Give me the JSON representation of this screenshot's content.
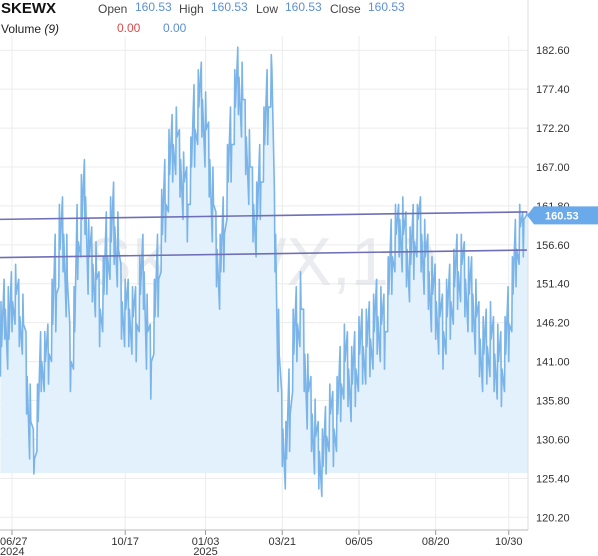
{
  "header": {
    "symbol": "SKEWX",
    "open_label": "Open",
    "open_value": "160.53",
    "high_label": "High",
    "high_value": "160.53",
    "low_label": "Low",
    "low_value": "160.53",
    "close_label": "Close",
    "close_value": "160.53",
    "volume_label": "Volume",
    "volume_period": "(9)",
    "volume_value_1": "0.00",
    "volume_value_2": "0.00"
  },
  "watermark": "SKEWX,1D",
  "last_price_label": "160.53",
  "colors": {
    "line": "#7ab4e8",
    "area": "#e3f1fd",
    "trendline": "#6f6fb8",
    "price_tag": "#6aa9ea",
    "grid": "#ececec"
  },
  "chart_data": {
    "type": "area",
    "title": "",
    "xlabel": "",
    "ylabel": "",
    "ylim": [
      118.5,
      184.5
    ],
    "y_ticks": [
      182.6,
      177.4,
      172.2,
      167.0,
      161.8,
      156.6,
      151.4,
      146.2,
      141.0,
      135.8,
      130.6,
      125.4,
      120.2
    ],
    "y_tick_labels": [
      "182.60",
      "177.40",
      "172.20",
      "167.00",
      "161.80",
      "156.60",
      "151.40",
      "146.20",
      "141.00",
      "135.80",
      "130.60",
      "125.40",
      "120.20"
    ],
    "x_tick_labels": [
      {
        "label": "06/27",
        "sublabel": "2024",
        "index": 3
      },
      {
        "label": "10/17",
        "sublabel": "",
        "index": 34
      },
      {
        "label": "01/03",
        "sublabel": "2025",
        "index": 56
      },
      {
        "label": "03/21",
        "sublabel": "",
        "index": 77
      },
      {
        "label": "06/05",
        "sublabel": "",
        "index": 98
      },
      {
        "label": "08/20",
        "sublabel": "",
        "index": 119
      },
      {
        "label": "10/30",
        "sublabel": "",
        "index": 139
      }
    ],
    "series": [
      {
        "values": [
          143,
          148,
          144,
          149,
          150,
          147,
          146,
          139,
          133,
          128,
          133,
          141,
          141,
          142,
          146,
          150,
          156,
          158,
          152,
          141,
          145,
          157,
          160,
          163,
          155,
          154,
          152,
          148,
          150,
          155,
          157,
          159,
          156,
          149,
          148,
          148,
          147,
          146,
          150,
          153,
          145,
          141,
          147,
          152,
          158,
          162,
          166,
          170,
          171,
          168,
          165,
          162,
          167,
          172,
          175,
          176,
          172,
          168,
          162,
          156,
          153,
          158,
          165,
          170,
          175,
          179,
          176,
          171,
          167,
          162,
          160,
          165,
          170,
          175,
          180,
          158,
          142,
          132,
          128,
          134,
          142,
          146,
          148,
          142,
          137,
          134,
          131,
          129,
          127,
          131,
          134,
          132,
          134,
          138,
          141,
          140,
          138,
          140,
          142,
          143,
          143,
          144,
          145,
          147,
          146,
          145,
          150,
          155,
          158,
          160,
          158,
          156,
          154,
          157,
          160,
          158,
          155,
          153,
          150,
          149,
          147,
          145,
          147,
          149,
          151,
          153,
          154,
          152,
          150,
          150,
          147,
          144,
          142,
          143,
          144,
          142,
          141,
          140,
          142,
          146,
          150,
          156,
          159,
          160,
          160.53
        ],
        "highs": [
          149,
          152,
          151,
          153,
          154,
          152,
          150,
          145,
          138,
          132,
          138,
          145,
          145,
          146,
          152,
          158,
          162,
          163,
          158,
          146,
          151,
          162,
          166,
          168,
          160,
          159,
          157,
          153,
          155,
          161,
          163,
          165,
          161,
          154,
          152,
          152,
          151,
          151,
          155,
          158,
          150,
          146,
          152,
          158,
          164,
          168,
          172,
          174,
          175,
          172,
          169,
          167,
          171,
          178,
          180,
          181,
          177,
          173,
          167,
          161,
          158,
          163,
          170,
          175,
          180,
          183,
          181,
          176,
          172,
          167,
          165,
          170,
          175,
          180,
          182,
          164,
          148,
          137,
          133,
          140,
          148,
          151,
          153,
          148,
          142,
          139,
          136,
          133,
          132,
          135,
          138,
          137,
          139,
          143,
          146,
          145,
          143,
          145,
          147,
          148,
          148,
          149,
          150,
          152,
          151,
          150,
          155,
          160,
          162,
          162,
          163,
          161,
          159,
          162,
          162,
          163,
          160,
          158,
          155,
          154,
          152,
          150,
          152,
          154,
          156,
          158,
          158,
          157,
          155,
          155,
          152,
          149,
          147,
          148,
          149,
          147,
          146,
          145,
          147,
          151,
          155,
          160,
          162,
          161,
          161
        ],
        "lows": [
          139,
          144,
          140,
          145,
          146,
          143,
          142,
          134,
          128,
          126,
          129,
          137,
          137,
          138,
          141,
          145,
          151,
          153,
          147,
          137,
          140,
          152,
          155,
          158,
          150,
          149,
          147,
          143,
          145,
          150,
          152,
          154,
          151,
          144,
          143,
          143,
          142,
          141,
          145,
          148,
          140,
          136,
          142,
          147,
          153,
          157,
          161,
          165,
          166,
          163,
          160,
          157,
          162,
          167,
          170,
          171,
          167,
          163,
          157,
          151,
          148,
          153,
          160,
          165,
          170,
          174,
          171,
          166,
          162,
          157,
          155,
          160,
          165,
          170,
          175,
          153,
          137,
          127,
          124,
          129,
          137,
          141,
          143,
          137,
          132,
          129,
          126,
          124,
          123,
          126,
          129,
          127,
          129,
          133,
          136,
          135,
          133,
          135,
          137,
          138,
          138,
          139,
          140,
          142,
          141,
          140,
          145,
          150,
          153,
          155,
          153,
          151,
          149,
          152,
          155,
          153,
          150,
          148,
          145,
          144,
          142,
          140,
          142,
          144,
          146,
          148,
          149,
          147,
          145,
          145,
          142,
          139,
          137,
          138,
          139,
          137,
          136,
          135,
          137,
          141,
          145,
          151,
          154,
          155,
          160.53
        ]
      }
    ],
    "trendlines": [
      {
        "from": 160.0,
        "to": 161.0
      },
      {
        "from": 154.9,
        "to": 155.9
      }
    ],
    "grid": true
  }
}
